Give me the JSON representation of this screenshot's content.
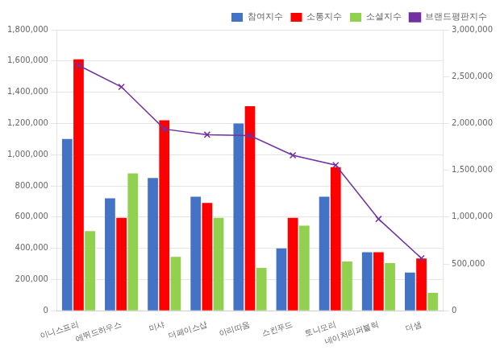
{
  "chart_data": {
    "type": "bar",
    "categories": [
      "이니스프리",
      "에뛰드하우스",
      "미샤",
      "더페이스샵",
      "아리따움",
      "스킨푸드",
      "토니모리",
      "네이처리퍼블릭",
      "더샘"
    ],
    "series": [
      {
        "name": "참여지수",
        "color": "#4472c4",
        "values": [
          1100000,
          720000,
          850000,
          730000,
          1200000,
          400000,
          730000,
          375000,
          245000
        ]
      },
      {
        "name": "소통지수",
        "color": "#ff0000",
        "values": [
          1610000,
          595000,
          1220000,
          690000,
          1310000,
          595000,
          920000,
          375000,
          335000
        ]
      },
      {
        "name": "소셜지수",
        "color": "#92d050",
        "values": [
          510000,
          880000,
          345000,
          595000,
          275000,
          545000,
          315000,
          305000,
          115000
        ]
      },
      {
        "name": "브랜드평판지수",
        "color": "#7030a0",
        "type": "line",
        "marker": "x",
        "line_style": "solid",
        "axis": "y2",
        "values": [
          2620000,
          2390000,
          1940000,
          1880000,
          1870000,
          1660000,
          1555000,
          980000,
          560000
        ]
      }
    ],
    "ylim": [
      0,
      1800000
    ],
    "yticks": [
      0,
      {
        "value": 200000,
        "label": "200,000"
      },
      {
        "value": 400000,
        "label": "400,000"
      },
      {
        "value": 600000,
        "label": "600,000"
      },
      {
        "value": 800000,
        "label": "800,000"
      },
      {
        "value": 1000000,
        "label": "1,000,000"
      },
      {
        "value": 1200000,
        "label": "1,200,000"
      },
      {
        "value": 1400000,
        "label": "1,400,000"
      },
      {
        "value": 1600000,
        "label": "1,600,000"
      },
      {
        "value": 1800000,
        "label": "1,800,000"
      }
    ],
    "y2lim": [
      0,
      3000000
    ],
    "y2ticks": [
      0,
      {
        "value": 500000,
        "label": "500,000"
      },
      {
        "value": 1000000,
        "label": "1,000,000"
      },
      {
        "value": 1500000,
        "label": "1,500,000"
      },
      {
        "value": 2000000,
        "label": "2,000,000"
      },
      {
        "value": 2500000,
        "label": "2,500,000"
      },
      {
        "value": 3000000,
        "label": "3,000,000"
      }
    ],
    "grid": true,
    "legend": "upper right"
  }
}
